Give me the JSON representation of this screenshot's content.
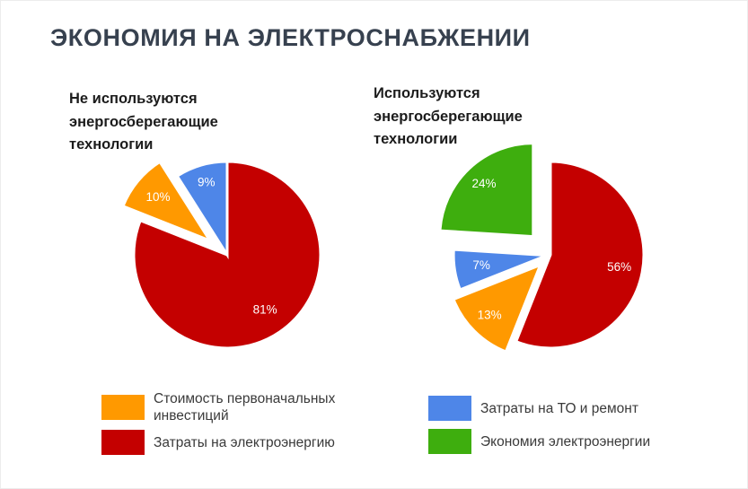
{
  "page": {
    "title": "ЭКОНОМИЯ НА ЭЛЕКТРОСНАБЖЕНИИ",
    "title_color": "#37414f",
    "background": "#ffffff"
  },
  "colors": {
    "red": "#c40000",
    "orange": "#ff9900",
    "blue": "#4e86e8",
    "green": "#3eae0e"
  },
  "chart_data": [
    {
      "type": "pie",
      "title": "Не используются энергосберегающие технологии",
      "units": "%",
      "start_angle_deg": 0,
      "clockwise": true,
      "legend_position": "bottom",
      "slices": [
        {
          "name": "Затраты на электроэнергию",
          "value": 81,
          "color_key": "red",
          "explode": 0,
          "label_r": 0.72
        },
        {
          "name": "Стоимость первоначальных инвестиций",
          "value": 10,
          "color_key": "orange",
          "explode": 25,
          "label_r": 0.72
        },
        {
          "name": "Затраты на ТО и ремонт",
          "value": 9,
          "color_key": "blue",
          "explode": 0,
          "label_r": 0.8
        }
      ]
    },
    {
      "type": "pie",
      "title": "Используются энергосберегающие технологии",
      "units": "%",
      "start_angle_deg": 0,
      "clockwise": true,
      "legend_position": "bottom",
      "slices": [
        {
          "name": "Затраты на электроэнергию",
          "value": 56,
          "color_key": "red",
          "explode": 0,
          "label_r": 0.75
        },
        {
          "name": "Стоимость первоначальных инвестиций",
          "value": 13,
          "color_key": "orange",
          "explode": 16,
          "label_r": 0.77
        },
        {
          "name": "Затраты на ТО и ремонт",
          "value": 7,
          "color_key": "blue",
          "explode": 4,
          "label_r": 0.71
        },
        {
          "name": "Экономия электроэнергии",
          "value": 24,
          "color_key": "green",
          "explode": 28,
          "label_r": 0.77
        }
      ]
    }
  ],
  "legend": {
    "left": [
      {
        "color_key": "orange",
        "label": "Стоимость первоначальных инвестиций"
      },
      {
        "color_key": "red",
        "label": "Затраты на электроэнергию"
      }
    ],
    "right": [
      {
        "color_key": "blue",
        "label": "Затраты на ТО и ремонт"
      },
      {
        "color_key": "green",
        "label": "Экономия электроэнергии"
      }
    ]
  }
}
